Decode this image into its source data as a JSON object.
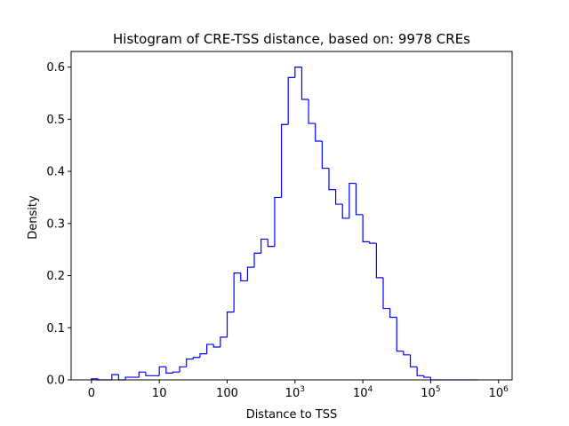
{
  "chart_data": {
    "type": "histogram",
    "title": "Histogram of CRE-TSS distance, based on: 9978 CREs",
    "xlabel": "Distance to TSS",
    "ylabel": "Density",
    "x_scale": "symlog",
    "xlim": [
      -0.3,
      6.2
    ],
    "ylim": [
      0,
      0.63
    ],
    "grid": false,
    "legend": "none",
    "color": "#0000ff",
    "histtype": "step",
    "x_ticks": [
      {
        "value": 0,
        "label": "0"
      },
      {
        "value": 10,
        "label": "10"
      },
      {
        "value": 100,
        "label": "100"
      },
      {
        "value": 1000,
        "label": "10",
        "exponent": "3"
      },
      {
        "value": 10000,
        "label": "10",
        "exponent": "4"
      },
      {
        "value": 100000,
        "label": "10",
        "exponent": "5"
      },
      {
        "value": 1000000,
        "label": "10",
        "exponent": "6"
      }
    ],
    "y_ticks": [
      {
        "value": 0.0,
        "label": "0.0"
      },
      {
        "value": 0.1,
        "label": "0.1"
      },
      {
        "value": 0.2,
        "label": "0.2"
      },
      {
        "value": 0.3,
        "label": "0.3"
      },
      {
        "value": 0.4,
        "label": "0.4"
      },
      {
        "value": 0.5,
        "label": "0.5"
      },
      {
        "value": 0.6,
        "label": "0.6"
      }
    ],
    "bin_edges_log10": [
      0.0,
      0.1,
      0.3,
      0.4,
      0.5,
      0.7,
      0.8,
      1.0,
      1.1,
      1.2,
      1.3,
      1.4,
      1.5,
      1.6,
      1.7,
      1.8,
      1.9,
      2.0,
      2.1,
      2.2,
      2.3,
      2.4,
      2.5,
      2.6,
      2.7,
      2.8,
      2.9,
      3.0,
      3.1,
      3.2,
      3.3,
      3.4,
      3.5,
      3.6,
      3.7,
      3.8,
      3.9,
      4.0,
      4.1,
      4.2,
      4.3,
      4.4,
      4.5,
      4.6,
      4.7,
      4.8,
      4.9,
      5.0,
      5.1,
      5.2,
      5.3,
      5.4,
      5.5,
      5.6,
      5.7
    ],
    "density": [
      0.002,
      0.0,
      0.01,
      0.0,
      0.005,
      0.015,
      0.008,
      0.025,
      0.013,
      0.015,
      0.025,
      0.04,
      0.043,
      0.05,
      0.068,
      0.063,
      0.082,
      0.13,
      0.205,
      0.19,
      0.216,
      0.243,
      0.27,
      0.256,
      0.35,
      0.49,
      0.58,
      0.6,
      0.538,
      0.492,
      0.458,
      0.406,
      0.365,
      0.337,
      0.31,
      0.377,
      0.317,
      0.265,
      0.262,
      0.196,
      0.137,
      0.12,
      0.055,
      0.048,
      0.025,
      0.008,
      0.005,
      0.0,
      0.0,
      0.0,
      0.0,
      0.0,
      0.0,
      0.0
    ]
  }
}
